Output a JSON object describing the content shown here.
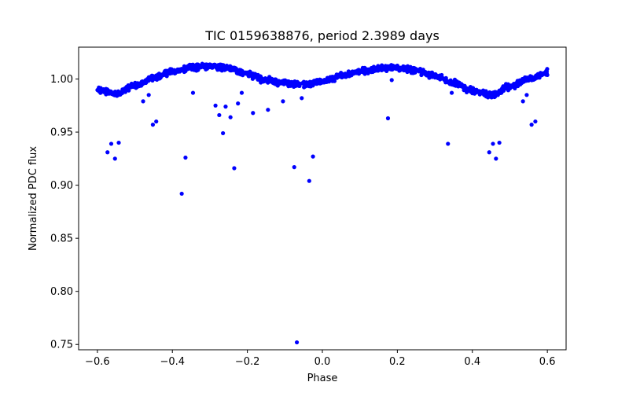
{
  "chart_data": {
    "type": "scatter",
    "title": "TIC 0159638876, period 2.3989 days",
    "xlabel": "Phase",
    "ylabel": "Normalized PDC flux",
    "xlim": [
      -0.65,
      0.65
    ],
    "ylim": [
      0.745,
      1.03
    ],
    "x_ticks": [
      -0.6,
      -0.4,
      -0.2,
      0.0,
      0.2,
      0.4,
      0.6
    ],
    "x_tick_labels": [
      "−0.6",
      "−0.4",
      "−0.2",
      "0.0",
      "0.2",
      "0.4",
      "0.6"
    ],
    "y_ticks": [
      0.75,
      0.8,
      0.85,
      0.9,
      0.95,
      1.0
    ],
    "y_tick_labels": [
      "0.75",
      "0.80",
      "0.85",
      "0.90",
      "0.95",
      "1.00"
    ],
    "grid": false,
    "marker_color": "#0000ff",
    "series": [
      {
        "trend_curve": {
          "description_points_x": [
            -0.6,
            -0.55,
            -0.5,
            -0.45,
            -0.4,
            -0.35,
            -0.3,
            -0.25,
            -0.2,
            -0.15,
            -0.1,
            -0.05,
            0.0,
            0.05,
            0.1,
            0.15,
            0.2,
            0.25,
            0.3,
            0.35,
            0.4,
            0.45,
            0.5,
            0.55,
            0.6
          ],
          "description_points_y": [
            0.99,
            0.986,
            0.994,
            1.001,
            1.007,
            1.011,
            1.012,
            1.01,
            1.005,
            0.999,
            0.996,
            0.995,
            0.998,
            1.003,
            1.007,
            1.01,
            1.011,
            1.008,
            1.003,
            0.996,
            0.989,
            0.985,
            0.993,
            1.0,
            1.006
          ],
          "scatter_halfwidth": 0.004
        },
        "outliers": [
          {
            "x": -0.573,
            "y": 0.931
          },
          {
            "x": -0.563,
            "y": 0.939
          },
          {
            "x": -0.553,
            "y": 0.925
          },
          {
            "x": -0.543,
            "y": 0.94
          },
          {
            "x": -0.478,
            "y": 0.979
          },
          {
            "x": -0.463,
            "y": 0.985
          },
          {
            "x": -0.452,
            "y": 0.957
          },
          {
            "x": -0.443,
            "y": 0.96
          },
          {
            "x": -0.375,
            "y": 0.892
          },
          {
            "x": -0.365,
            "y": 0.926
          },
          {
            "x": -0.345,
            "y": 0.987
          },
          {
            "x": -0.285,
            "y": 0.975
          },
          {
            "x": -0.275,
            "y": 0.966
          },
          {
            "x": -0.265,
            "y": 0.949
          },
          {
            "x": -0.258,
            "y": 0.974
          },
          {
            "x": -0.245,
            "y": 0.964
          },
          {
            "x": -0.235,
            "y": 0.916
          },
          {
            "x": -0.225,
            "y": 0.977
          },
          {
            "x": -0.215,
            "y": 0.987
          },
          {
            "x": -0.185,
            "y": 0.968
          },
          {
            "x": -0.145,
            "y": 0.971
          },
          {
            "x": -0.105,
            "y": 0.979
          },
          {
            "x": -0.075,
            "y": 0.917
          },
          {
            "x": -0.068,
            "y": 0.752
          },
          {
            "x": -0.055,
            "y": 0.982
          },
          {
            "x": -0.035,
            "y": 0.904
          },
          {
            "x": -0.025,
            "y": 0.927
          },
          {
            "x": 0.175,
            "y": 0.963
          },
          {
            "x": 0.185,
            "y": 0.999
          },
          {
            "x": 0.335,
            "y": 0.939
          },
          {
            "x": 0.345,
            "y": 0.987
          },
          {
            "x": 0.445,
            "y": 0.931
          },
          {
            "x": 0.455,
            "y": 0.939
          },
          {
            "x": 0.463,
            "y": 0.925
          },
          {
            "x": 0.472,
            "y": 0.94
          },
          {
            "x": 0.535,
            "y": 0.979
          },
          {
            "x": 0.545,
            "y": 0.985
          },
          {
            "x": 0.558,
            "y": 0.957
          },
          {
            "x": 0.568,
            "y": 0.96
          }
        ]
      }
    ]
  }
}
